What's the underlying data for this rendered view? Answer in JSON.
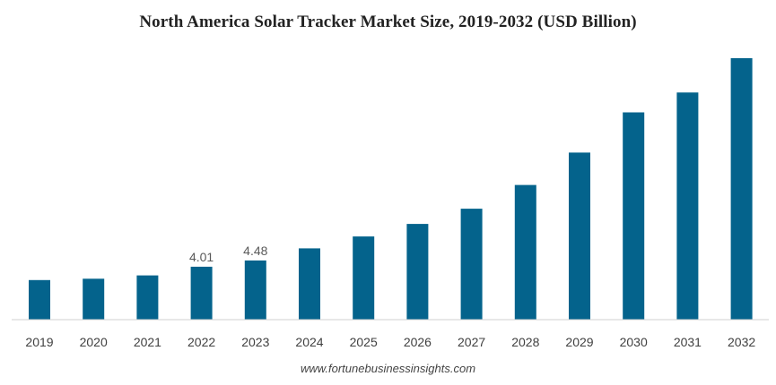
{
  "colors": {
    "bar": "#04638c",
    "axis": "#d0d0d0",
    "tick_text": "#404040",
    "data_label": "#595959"
  },
  "source": "www.fortunebusinessinsights.com",
  "chart_data": {
    "type": "bar",
    "title": "North America Solar Tracker Market Size, 2019-2032 (USD Billion)",
    "xlabel": "",
    "ylabel": "",
    "grid": false,
    "legend": "none",
    "categories": [
      "2019",
      "2020",
      "2021",
      "2022",
      "2023",
      "2024",
      "2025",
      "2026",
      "2027",
      "2028",
      "2029",
      "2030",
      "2031",
      "2032"
    ],
    "values": [
      3.0,
      3.1,
      3.35,
      4.01,
      4.48,
      5.4,
      6.3,
      7.25,
      8.4,
      10.2,
      12.65,
      15.7,
      17.2,
      19.8
    ],
    "data_labels": [
      "",
      "",
      "",
      "4.01",
      "4.48",
      "",
      "",
      "",
      "",
      "",
      "",
      "",
      "",
      ""
    ],
    "ylim": [
      0,
      20
    ]
  }
}
